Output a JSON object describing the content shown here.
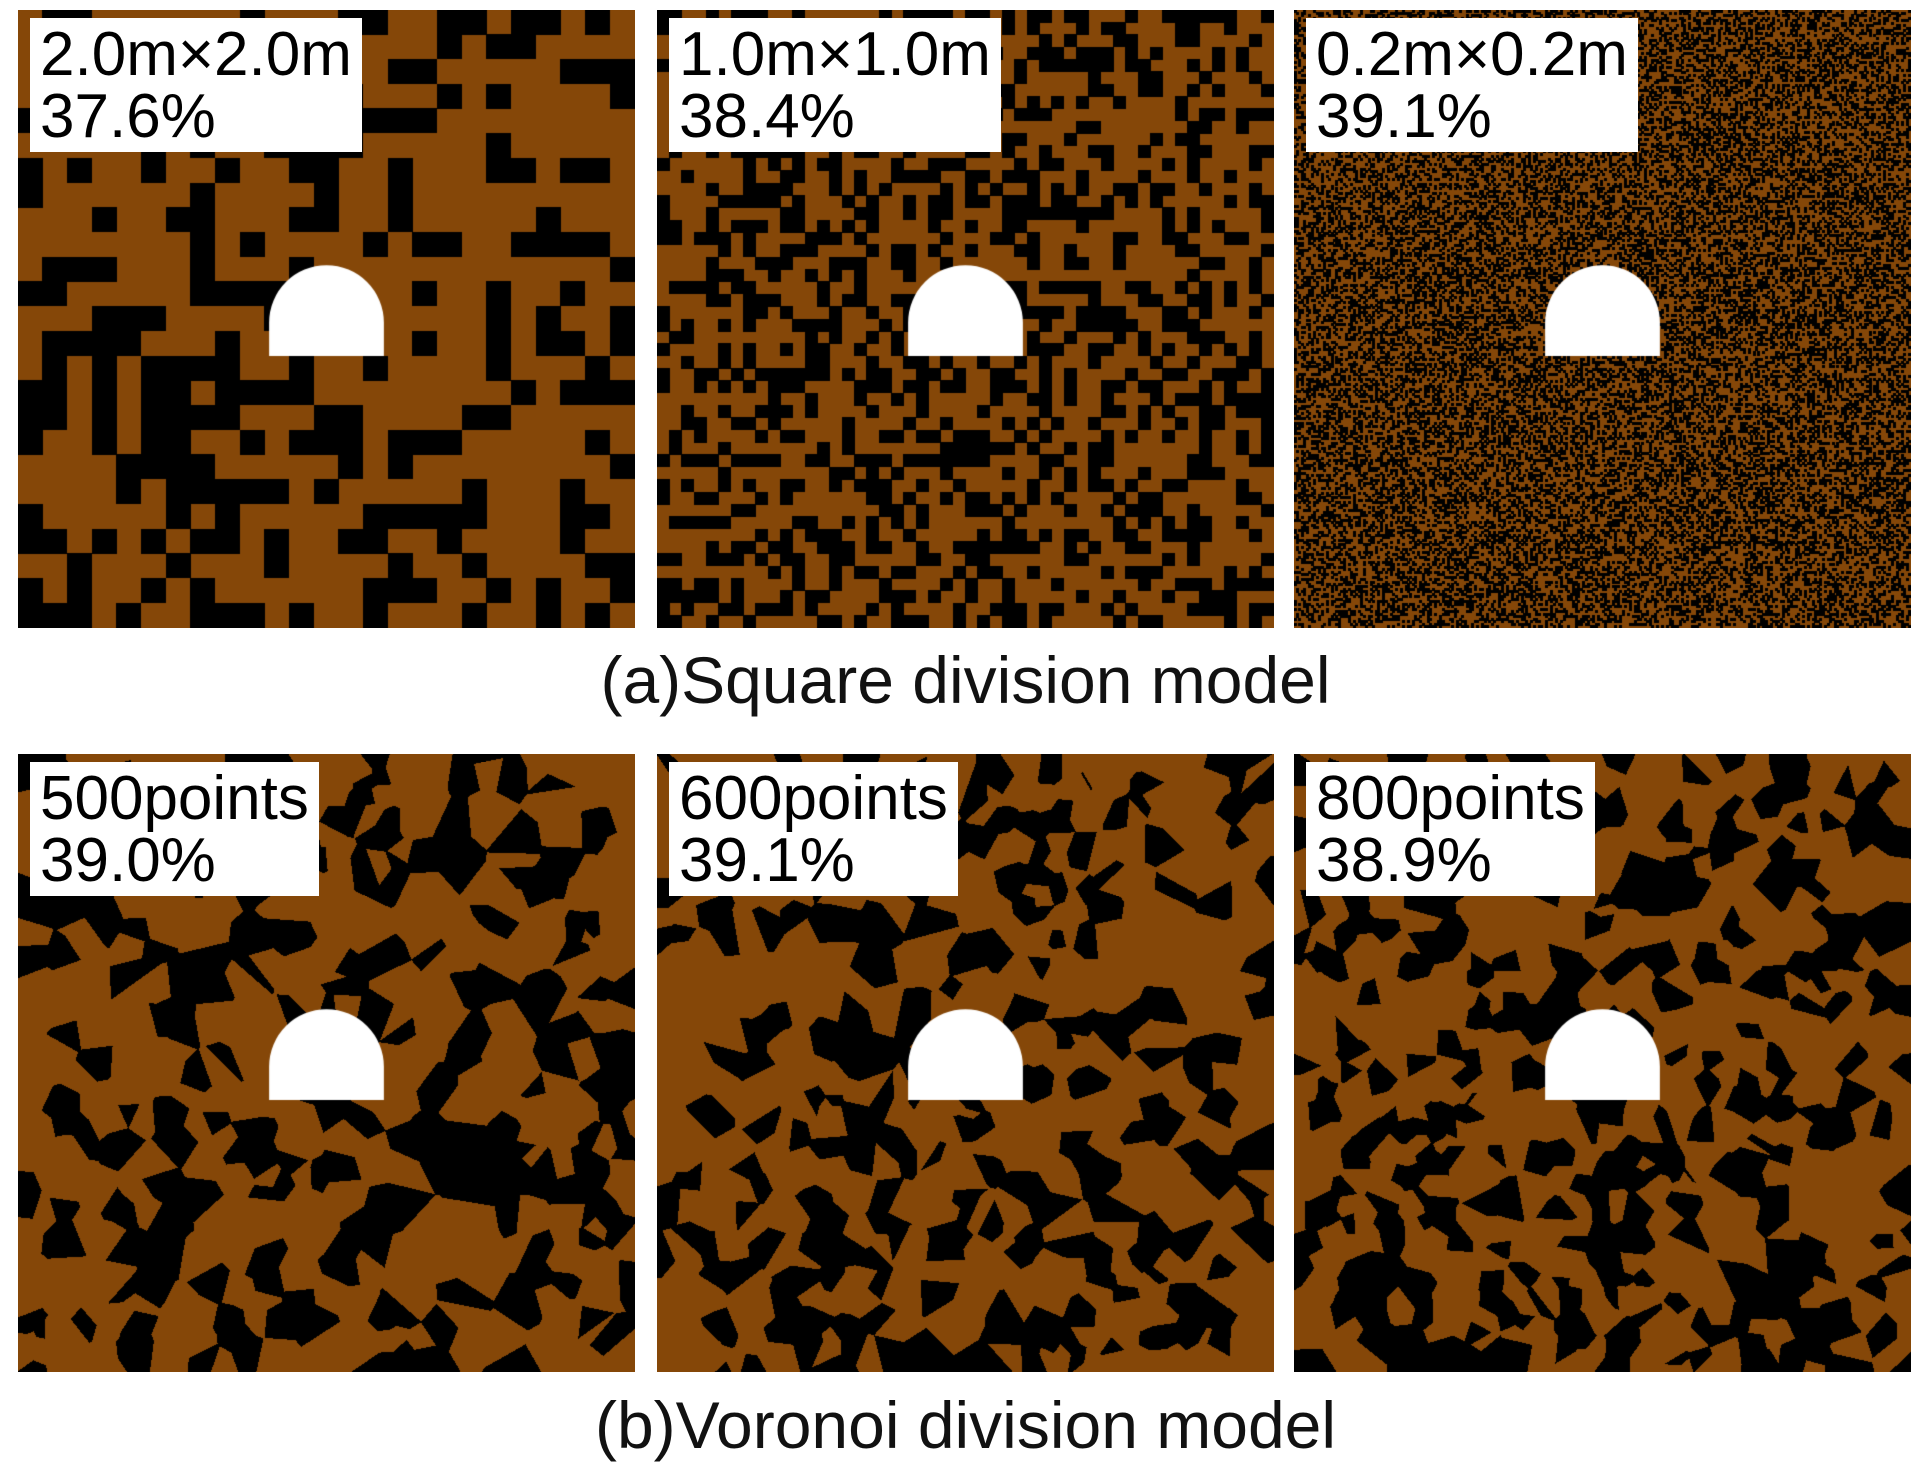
{
  "colors": {
    "rock": "#854708",
    "pore": "#000000",
    "tunnel": "#ffffff"
  },
  "rows": [
    {
      "caption": "(a)Square division model",
      "model": "square",
      "panels": [
        {
          "size_label": "2.0m×2.0m",
          "percent": "37.6%",
          "cells_per_side": 25,
          "fraction": 0.376
        },
        {
          "size_label": "1.0m×1.0m",
          "percent": "38.4%",
          "cells_per_side": 50,
          "fraction": 0.384
        },
        {
          "size_label": "0.2m×0.2m",
          "percent": "39.1%",
          "cells_per_side": 250,
          "fraction": 0.391
        }
      ]
    },
    {
      "caption": "(b)Voronoi division model",
      "model": "voronoi",
      "panels": [
        {
          "size_label": "500points",
          "percent": "39.0%",
          "points": 500,
          "fraction": 0.39
        },
        {
          "size_label": "600points",
          "percent": "39.1%",
          "points": 600,
          "fraction": 0.391
        },
        {
          "size_label": "800points",
          "percent": "38.9%",
          "points": 800,
          "fraction": 0.389
        }
      ]
    }
  ]
}
